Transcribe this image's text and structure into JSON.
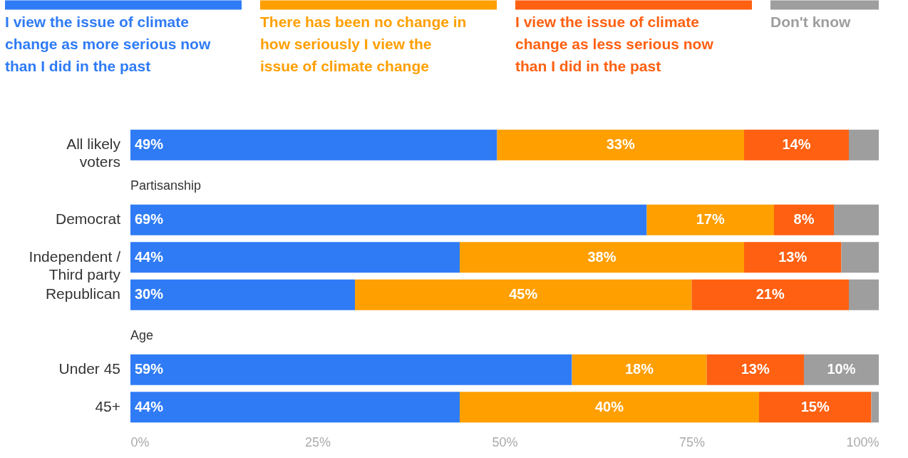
{
  "chart_data": {
    "type": "bar",
    "orientation": "horizontal",
    "stacked": true,
    "legend": "top",
    "categories": [
      "All likely voters",
      "Partisanship",
      "Democrat",
      "Independent / Third party",
      "Republican",
      "Age",
      "Under 45",
      "45+"
    ],
    "xlim": [
      0,
      100
    ],
    "xticks": [
      {
        "value": 0,
        "label": "0%"
      },
      {
        "value": 25,
        "label": "25%"
      },
      {
        "value": 50,
        "label": "50%"
      },
      {
        "value": 75,
        "label": "75%"
      },
      {
        "value": 100,
        "label": "100%"
      }
    ],
    "series": [
      {
        "name": "I view the issue of climate change as more serious now than I did in the past",
        "color": "#2f7bf5",
        "values": [
          49,
          null,
          69,
          44,
          30,
          null,
          59,
          44
        ],
        "value_labels": [
          "49%",
          null,
          "69%",
          "44%",
          "30%",
          null,
          "59%",
          "44%"
        ]
      },
      {
        "name": "There has been no change in how seriously I view the issue of climate change",
        "color": "#ff9f00",
        "values": [
          33,
          null,
          17,
          38,
          45,
          null,
          18,
          40
        ],
        "value_labels": [
          "33%",
          null,
          "17%",
          "38%",
          "45%",
          null,
          "18%",
          "40%"
        ]
      },
      {
        "name": "I view the issue of climate change as less serious now than I did in the past",
        "color": "#ff6011",
        "values": [
          14,
          null,
          8,
          13,
          21,
          null,
          13,
          15
        ],
        "value_labels": [
          "14%",
          null,
          "8%",
          "13%",
          "21%",
          null,
          "13%",
          "15%"
        ]
      },
      {
        "name": "Don't know",
        "color": "#9e9e9e",
        "values": [
          4,
          null,
          6,
          5,
          4,
          null,
          10,
          1
        ],
        "value_labels": [
          null,
          null,
          null,
          null,
          null,
          null,
          "10%",
          null
        ]
      }
    ]
  }
}
